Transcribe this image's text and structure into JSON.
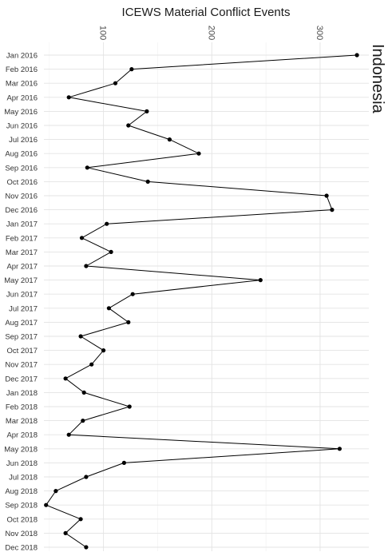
{
  "chart_data": {
    "type": "line",
    "title": "ICEWS Material Conflict Events",
    "facet_label": "Indonesia",
    "xlabel": "",
    "ylabel": "",
    "x_ticks": [
      100,
      200,
      300
    ],
    "xlim": [
      45,
      345
    ],
    "orientation": "vertical",
    "grid": true,
    "categories": [
      "Jan 2016",
      "Feb 2016",
      "Mar 2016",
      "Apr 2016",
      "May 2016",
      "Jun 2016",
      "Jul 2016",
      "Aug 2016",
      "Sep 2016",
      "Oct 2016",
      "Nov 2016",
      "Dec 2016",
      "Jan 2017",
      "Feb 2017",
      "Mar 2017",
      "Apr 2017",
      "May 2017",
      "Jun 2017",
      "Jul 2017",
      "Aug 2017",
      "Sep 2017",
      "Oct 2017",
      "Nov 2017",
      "Dec 2017",
      "Jan 2018",
      "Feb 2018",
      "Mar 2018",
      "Apr 2018",
      "May 2018",
      "Jun 2018",
      "Jul 2018",
      "Aug 2018",
      "Sep 2018",
      "Oct 2018",
      "Nov 2018",
      "Dec 2018"
    ],
    "series": [
      {
        "values": [
          334,
          126,
          111,
          68,
          140,
          123,
          161,
          188,
          85,
          141,
          306,
          311,
          103,
          80,
          107,
          84,
          245,
          127,
          105,
          123,
          79,
          100,
          89,
          65,
          82,
          124,
          81,
          68,
          318,
          119,
          84,
          56,
          47,
          79,
          65,
          84
        ]
      }
    ],
    "colors": {
      "line": "#000000",
      "point": "#000000",
      "grid": "#e3e3e3",
      "background": "#ffffff"
    }
  }
}
